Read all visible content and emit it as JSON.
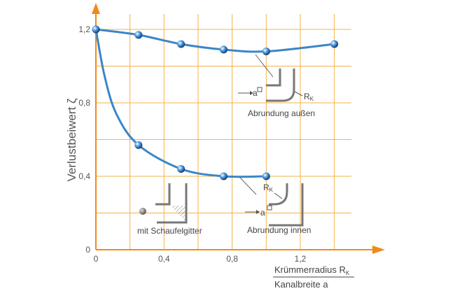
{
  "chart_data": {
    "type": "line",
    "xlabel_numerator": "Krümmerradius R",
    "xlabel_numerator_sub": "K",
    "xlabel_denominator": "Kanalbreite a",
    "ylabel": "Verlustbeiwert ζ",
    "xlim": [
      0,
      1.5
    ],
    "ylim": [
      0,
      1.2
    ],
    "x_ticks": [
      "0",
      "0,4",
      "0,8",
      "1,2"
    ],
    "y_ticks": [
      "0",
      "0,4",
      "0,8",
      "1,2"
    ],
    "grid": true,
    "series": [
      {
        "name": "Abrundung außen",
        "color": "#3a86c8",
        "points": [
          [
            0,
            1.2
          ],
          [
            0.25,
            1.17
          ],
          [
            0.5,
            1.12
          ],
          [
            0.75,
            1.09
          ],
          [
            1.0,
            1.08
          ],
          [
            1.4,
            1.12
          ]
        ]
      },
      {
        "name": "Abrundung innen",
        "color": "#3a86c8",
        "points": [
          [
            0,
            1.2
          ],
          [
            0.25,
            0.57
          ],
          [
            0.5,
            0.44
          ],
          [
            0.75,
            0.4
          ],
          [
            1.0,
            0.4
          ]
        ]
      }
    ],
    "point_annotations": [
      {
        "label": "mit Schaufelgitter",
        "x": 0,
        "y": 0.2
      }
    ],
    "annotations": {
      "outer": {
        "label": "Abrundung außen",
        "symbol_a": "a",
        "symbol_r": "R",
        "symbol_r_sub": "K"
      },
      "inner": {
        "label": "Abrundung innen",
        "symbol_a": "a",
        "symbol_r": "R",
        "symbol_r_sub": "K"
      },
      "vanes": {
        "label": "mit Schaufelgitter"
      }
    },
    "colors": {
      "grid": "#f5b24a",
      "axis": "#f08a1c",
      "curve": "#3a86c8"
    }
  }
}
